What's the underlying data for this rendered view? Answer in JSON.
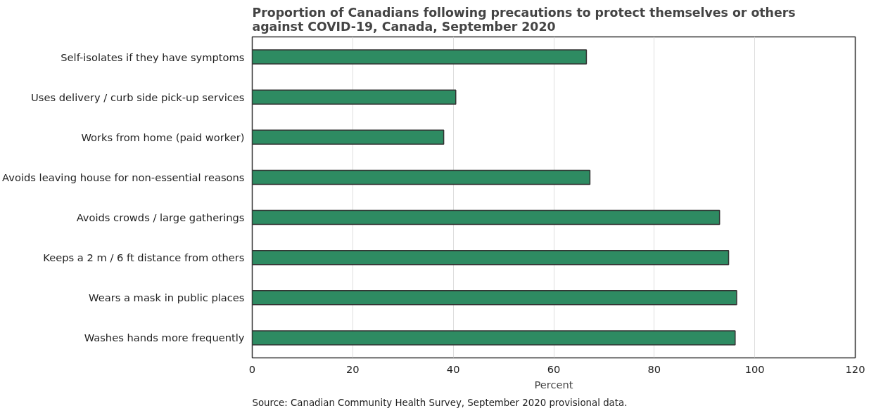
{
  "chart_data": {
    "type": "bar",
    "orientation": "horizontal",
    "title": "Proportion of Canadians following  precautions to protect themselves or others against COVID-19, Canada, September 2020",
    "categories": [
      "Self-isolates if they have symptoms",
      "Uses delivery / curb side pick-up services",
      "Works from home (paid worker)",
      "Avoids leaving house for non-essential reasons",
      "Avoids crowds / large gatherings",
      "Keeps a 2 m / 6 ft distance from others",
      "Wears a mask in public places",
      "Washes hands more frequently"
    ],
    "values": [
      66.5,
      40.5,
      38.1,
      67.2,
      93.0,
      94.8,
      96.4,
      96.1
    ],
    "color": "#2e8b62",
    "xlabel": "Percent",
    "xlim": [
      0,
      120
    ],
    "xticks": [
      0,
      20,
      40,
      60,
      80,
      100,
      120
    ],
    "grid": "x",
    "annotations": [
      "Source: Canadian Community Health Survey, September 2020 provisional data."
    ]
  }
}
